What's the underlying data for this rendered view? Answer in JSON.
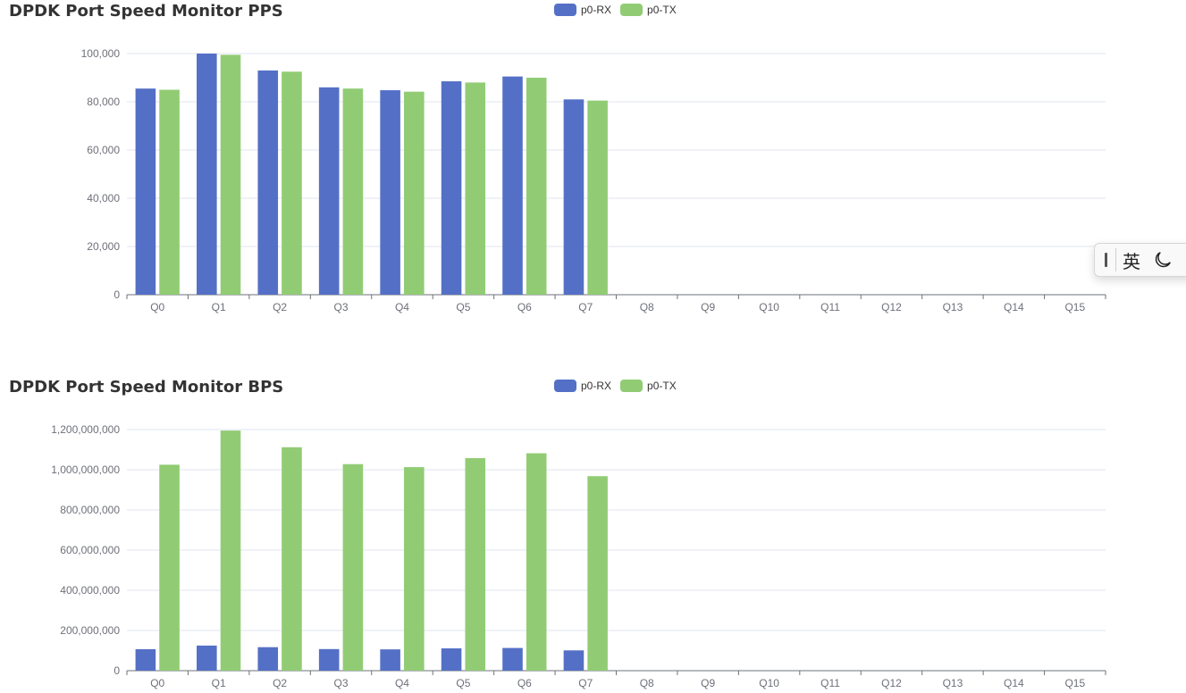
{
  "chart_data": [
    {
      "id": "pps",
      "type": "bar",
      "title": "DPDK Port Speed Monitor PPS",
      "categories": [
        "Q0",
        "Q1",
        "Q2",
        "Q3",
        "Q4",
        "Q5",
        "Q6",
        "Q7",
        "Q8",
        "Q9",
        "Q10",
        "Q11",
        "Q12",
        "Q13",
        "Q14",
        "Q15"
      ],
      "series": [
        {
          "name": "p0-RX",
          "color": "#5470c6",
          "values": [
            85500,
            100000,
            93000,
            86000,
            84800,
            88500,
            90500,
            81000,
            0,
            0,
            0,
            0,
            0,
            0,
            0,
            0
          ]
        },
        {
          "name": "p0-TX",
          "color": "#91cc75",
          "values": [
            85000,
            99500,
            92500,
            85500,
            84200,
            88000,
            90000,
            80500,
            0,
            0,
            0,
            0,
            0,
            0,
            0,
            0
          ]
        }
      ],
      "ylim": [
        0,
        100000
      ],
      "yticks": [
        0,
        20000,
        40000,
        60000,
        80000,
        100000
      ],
      "ytick_labels": [
        "0",
        "20,000",
        "40,000",
        "60,000",
        "80,000",
        "100,000"
      ],
      "grid": true,
      "legend_position": "top-center"
    },
    {
      "id": "bps",
      "type": "bar",
      "title": "DPDK Port Speed Monitor BPS",
      "categories": [
        "Q0",
        "Q1",
        "Q2",
        "Q3",
        "Q4",
        "Q5",
        "Q6",
        "Q7",
        "Q8",
        "Q9",
        "Q10",
        "Q11",
        "Q12",
        "Q13",
        "Q14",
        "Q15"
      ],
      "series": [
        {
          "name": "p0-RX",
          "color": "#5470c6",
          "values": [
            107000000,
            125000000,
            117000000,
            107500000,
            106000000,
            111000000,
            113000000,
            101000000,
            0,
            0,
            0,
            0,
            0,
            0,
            0,
            0
          ]
        },
        {
          "name": "p0-TX",
          "color": "#91cc75",
          "values": [
            1025000000,
            1195000000,
            1112000000,
            1028000000,
            1013000000,
            1058000000,
            1082000000,
            968000000,
            0,
            0,
            0,
            0,
            0,
            0,
            0,
            0
          ]
        }
      ],
      "ylim": [
        0,
        1200000000
      ],
      "yticks": [
        0,
        200000000,
        400000000,
        600000000,
        800000000,
        1000000000,
        1200000000
      ],
      "ytick_labels": [
        "0",
        "200,000,000",
        "400,000,000",
        "600,000,000",
        "800,000,000",
        "1,000,000,000",
        "1,200,000,000"
      ],
      "grid": true,
      "legend_position": "top-center"
    }
  ],
  "ime_toolbar": {
    "language_label": "英",
    "grip_icon": "grip-icon",
    "mode_icon": "moon-icon"
  }
}
